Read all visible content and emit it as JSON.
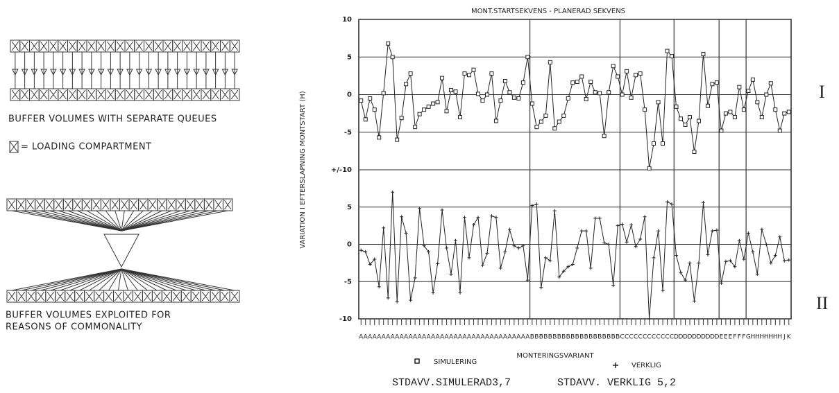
{
  "diagram": {
    "top_caption": "BUFFER VOLUMES WITH SEPARATE QUEUES",
    "legend_text": "= LOADING COMPARTMENT",
    "bottom_caption": [
      "BUFFER VOLUMES EXPLOITED FOR",
      "REASONS OF COMMONALITY"
    ]
  },
  "chart_data": [
    {
      "type": "line",
      "title": "MONT.STARTSEKVENS - PLANERAD SEKVENS",
      "y_label": "VARIATION I EFTERSLAPNING MONTSTART (H)",
      "ylim": [
        -10,
        10
      ],
      "yticks": [
        10,
        5,
        0,
        -5,
        {
          "value": -10,
          "label": "+/-10"
        }
      ],
      "grid": true,
      "series": [
        {
          "name": "SIMULERING",
          "color": "#222222",
          "marker": "square",
          "values": [
            -0.8,
            -3.3,
            -0.5,
            -2,
            -5.7,
            0.2,
            6.8,
            5,
            -6,
            -3.1,
            1.4,
            2.8,
            -4.3,
            -2.6,
            -2,
            -1.6,
            -1.2,
            -1,
            2.2,
            -2.2,
            0.6,
            0.4,
            -3,
            2.8,
            2.6,
            3.3,
            0.1,
            -0.8,
            0,
            2.8,
            -3.5,
            -0.8,
            1.8,
            0.3,
            -0.4,
            -0.5,
            1.6,
            5,
            -1.2,
            -4.3,
            -3.6,
            -2.8,
            4.3,
            -4.5,
            -3.6,
            -2.8,
            -0.5,
            1.6,
            1.7,
            2.4,
            -0.6,
            1.7,
            0.3,
            0.2,
            -5.5,
            0.3,
            3.8,
            2.4,
            0,
            3.1,
            -0.4,
            2.6,
            2.8,
            -2,
            -9.8,
            -6.5,
            -1,
            -6.5,
            5.8,
            5.1,
            -1.6,
            -3.2,
            -4,
            -3,
            -7.6,
            -3.5,
            5.4,
            -1.5,
            1.4,
            1.6,
            -4.8,
            -2.5,
            -2.3,
            -3,
            1,
            -2,
            0.5,
            2,
            -1,
            -3,
            0,
            1.5,
            -2,
            -4.8,
            -2.5,
            -2.3
          ]
        }
      ]
    },
    {
      "type": "line",
      "x_label": "MONTERINGSVARIANT",
      "categories": [
        "A",
        "A",
        "A",
        "A",
        "A",
        "A",
        "A",
        "A",
        "A",
        "A",
        "A",
        "A",
        "A",
        "A",
        "A",
        "A",
        "A",
        "A",
        "A",
        "A",
        "A",
        "A",
        "A",
        "A",
        "A",
        "A",
        "A",
        "A",
        "A",
        "A",
        "A",
        "A",
        "A",
        "A",
        "A",
        "A",
        "A",
        "A",
        "B",
        "B",
        "B",
        "B",
        "B",
        "B",
        "B",
        "B",
        "B",
        "B",
        "B",
        "B",
        "B",
        "B",
        "B",
        "B",
        "B",
        "B",
        "B",
        "B",
        "C",
        "C",
        "C",
        "C",
        "C",
        "C",
        "C",
        "C",
        "C",
        "C",
        "C",
        "C",
        "D",
        "D",
        "D",
        "D",
        "D",
        "D",
        "D",
        "D",
        "D",
        "D",
        "E",
        "E",
        "E",
        "F",
        "F",
        "F",
        "G",
        "H",
        "H",
        "H",
        "H",
        "H",
        "H",
        "H",
        "J",
        "K"
      ],
      "ylim": [
        -10,
        10
      ],
      "yticks": [
        5,
        0,
        -5,
        -10
      ],
      "grid": true,
      "series": [
        {
          "name": "VERKLIG",
          "color": "#222222",
          "marker": "plus",
          "values": [
            -0.8,
            -1,
            -2.7,
            -2,
            -5.7,
            2.2,
            -7.2,
            7,
            -7.7,
            3.7,
            1.5,
            -7.5,
            -4.5,
            4.8,
            -0.2,
            -1,
            -6.5,
            -2.6,
            4.6,
            -0.5,
            -4,
            0.5,
            -6.5,
            3.6,
            -1.8,
            2.6,
            3.6,
            -2.8,
            -1.2,
            3.8,
            3.6,
            -3.2,
            -1,
            2,
            -0.2,
            -0.5,
            -0.2,
            -4.8,
            5.2,
            5.4,
            -5.8,
            -1.8,
            -2.2,
            4.5,
            -4.4,
            -3.6,
            -3,
            -2.7,
            -0.5,
            1.8,
            1.8,
            -3.2,
            3.5,
            3.5,
            0.2,
            0,
            -5.5,
            2.5,
            2.7,
            0.3,
            2.6,
            -0.3,
            0.7,
            3.7,
            -10,
            -1.8,
            1.8,
            -6.2,
            5.7,
            5.4,
            -1.5,
            -3.8,
            -4.8,
            -2.5,
            -7.6,
            -2.5,
            5.6,
            -1.4,
            1.8,
            1.9,
            -5.2,
            -2.3,
            -2.2,
            -3,
            0.5,
            -2,
            1.5,
            -1,
            -4,
            2,
            0,
            -2.5,
            -1.5,
            1,
            -2.2,
            -2.1
          ]
        }
      ]
    }
  ],
  "footer": [
    "STDAVV.SIMULERAD3,7",
    "STDAVV. VERKLIG 5,2"
  ],
  "panel_labels": [
    "I",
    "II"
  ]
}
